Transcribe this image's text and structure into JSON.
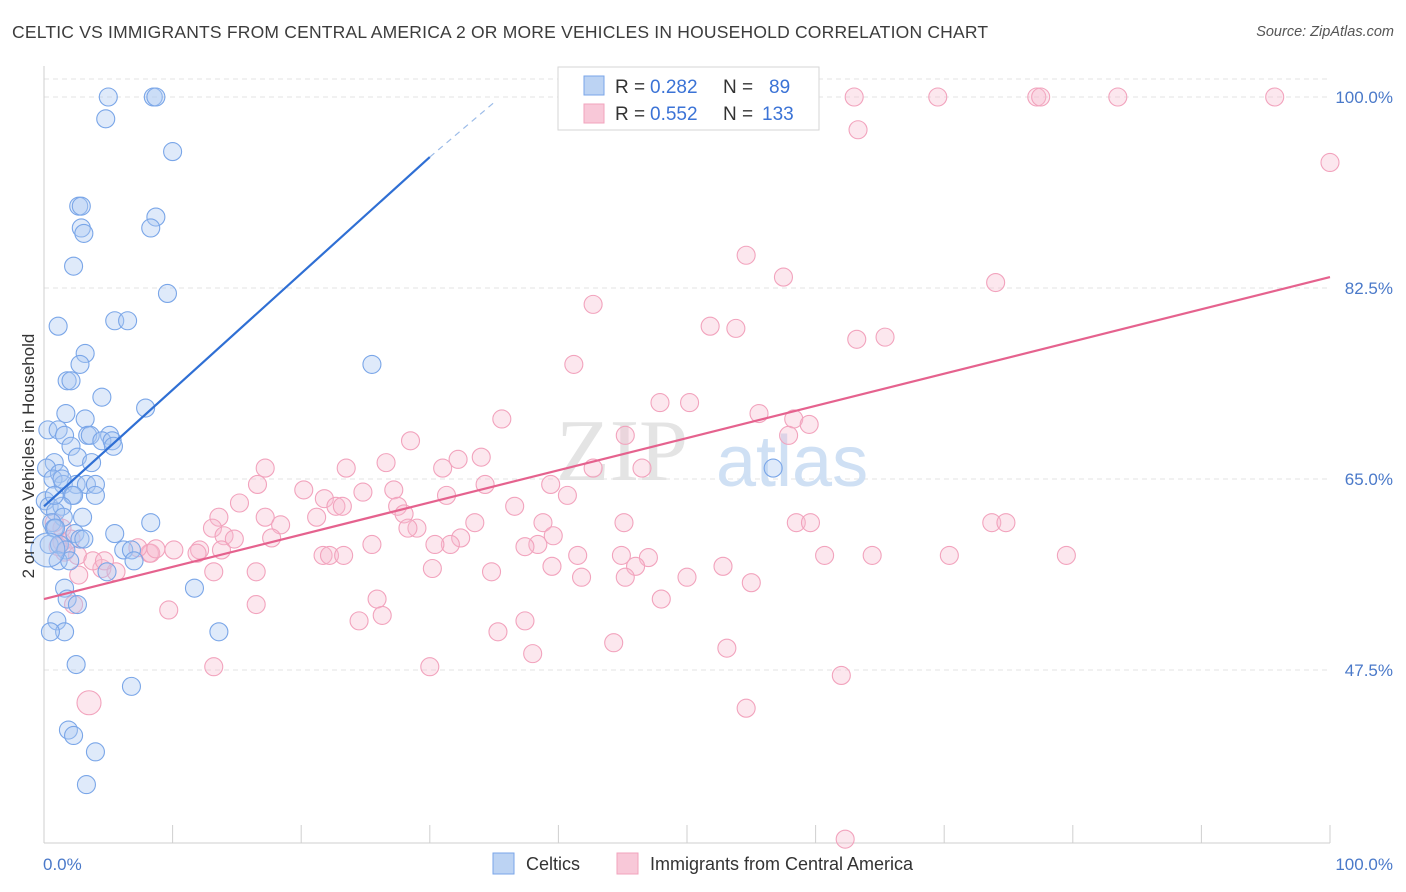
{
  "title": "CELTIC VS IMMIGRANTS FROM CENTRAL AMERICA 2 OR MORE VEHICLES IN HOUSEHOLD CORRELATION CHART",
  "source": "Source: ZipAtlas.com",
  "watermark": {
    "zip": "ZIP",
    "atlas": "atlas"
  },
  "chart_data": {
    "type": "scatter",
    "ylabel": "2 or more Vehicles in Household",
    "xlim": [
      0,
      100
    ],
    "ylim": [
      30,
      100
    ],
    "x_tick_labels": [
      "0.0%",
      "100.0%"
    ],
    "y_ticks": [
      {
        "value": 100.0,
        "label": "100.0%"
      },
      {
        "value": 82.5,
        "label": "82.5%"
      },
      {
        "value": 65.0,
        "label": "65.0%"
      },
      {
        "value": 47.5,
        "label": "47.5%"
      }
    ],
    "grid": true,
    "legend_position": "top-center",
    "stats": [
      {
        "series": "Celtics",
        "r_label": "R =",
        "r": "0.282",
        "n_label": "N =",
        "n": "89"
      },
      {
        "series": "Immigrants from Central America",
        "r_label": "R =",
        "r": "0.552",
        "n_label": "N =",
        "n": "133"
      }
    ],
    "series": [
      {
        "name": "Celtics",
        "color": "#7aa6e8",
        "line_color": "#2f6fd4",
        "trend": {
          "x0": 0,
          "y0": 62.5,
          "x1": 30,
          "y1": 94.5,
          "dash_x1": 35,
          "dash_y1": 99.5
        },
        "points": [
          [
            5,
            100
          ],
          [
            8.5,
            100
          ],
          [
            8.7,
            100
          ],
          [
            4.8,
            98
          ],
          [
            10,
            95
          ],
          [
            2.7,
            90
          ],
          [
            2.9,
            90
          ],
          [
            8.7,
            89
          ],
          [
            2.9,
            88
          ],
          [
            3.1,
            87.5
          ],
          [
            8.3,
            88
          ],
          [
            2.3,
            84.5
          ],
          [
            9.6,
            82
          ],
          [
            5.5,
            79.5
          ],
          [
            6.5,
            79.5
          ],
          [
            1.1,
            79
          ],
          [
            3.2,
            76.5
          ],
          [
            2.8,
            75.5
          ],
          [
            25.5,
            75.5
          ],
          [
            1.8,
            74
          ],
          [
            2.1,
            74
          ],
          [
            4.5,
            72.5
          ],
          [
            1.7,
            71
          ],
          [
            3.2,
            70.5
          ],
          [
            7.9,
            71.5
          ],
          [
            0.3,
            69.5
          ],
          [
            1.1,
            69.5
          ],
          [
            1.6,
            69
          ],
          [
            3.4,
            69
          ],
          [
            3.6,
            69
          ],
          [
            5.1,
            69
          ],
          [
            4.5,
            68.5
          ],
          [
            5.3,
            68.5
          ],
          [
            2.1,
            68
          ],
          [
            5.4,
            68
          ],
          [
            2.6,
            67
          ],
          [
            3.7,
            66.5
          ],
          [
            0.8,
            66.5
          ],
          [
            0.2,
            66
          ],
          [
            1.2,
            65.5
          ],
          [
            0.7,
            65
          ],
          [
            1.5,
            64.5
          ],
          [
            2.5,
            64.5
          ],
          [
            3.3,
            64.5
          ],
          [
            4,
            64.5
          ],
          [
            2.2,
            63.5
          ],
          [
            2.3,
            63.5
          ],
          [
            4,
            63.5
          ],
          [
            0.1,
            63
          ],
          [
            0.4,
            62.5
          ],
          [
            1.4,
            62.5
          ],
          [
            0.9,
            62
          ],
          [
            1.5,
            61.5
          ],
          [
            3,
            61.5
          ],
          [
            0.6,
            61
          ],
          [
            8.3,
            61
          ],
          [
            0.8,
            60.5
          ],
          [
            0.9,
            60.5
          ],
          [
            2.4,
            60
          ],
          [
            5.5,
            60
          ],
          [
            2.8,
            59.5
          ],
          [
            3.1,
            59.5
          ],
          [
            0.4,
            59
          ],
          [
            1.2,
            59
          ],
          [
            1.7,
            58.5
          ],
          [
            6.2,
            58.5
          ],
          [
            6.8,
            58.5
          ],
          [
            1.1,
            57.5
          ],
          [
            2,
            57.5
          ],
          [
            7,
            57.5
          ],
          [
            4.9,
            56.5
          ],
          [
            1.6,
            55
          ],
          [
            11.7,
            55
          ],
          [
            1.8,
            54
          ],
          [
            2.6,
            53.5
          ],
          [
            1,
            52
          ],
          [
            1.6,
            51
          ],
          [
            13.6,
            51
          ],
          [
            0.5,
            51
          ],
          [
            2.5,
            48
          ],
          [
            6.8,
            46
          ],
          [
            1.9,
            42
          ],
          [
            2.3,
            41.5
          ],
          [
            4,
            40
          ],
          [
            3.3,
            37
          ],
          [
            56.7,
            66
          ],
          [
            1.4,
            65
          ],
          [
            0.8,
            63.5
          ],
          [
            0.3,
            58.5
          ]
        ],
        "point_sizes": {
          "default": 9,
          "large": {
            "index": 88,
            "r": 17
          }
        }
      },
      {
        "name": "Immigrants from Central America",
        "color": "#f2a3bd",
        "line_color": "#e5628e",
        "trend": {
          "x0": 0,
          "y0": 54,
          "x1": 100,
          "y1": 83.5
        },
        "points": [
          [
            55.5,
            100
          ],
          [
            63,
            100
          ],
          [
            69.5,
            100
          ],
          [
            77.2,
            100
          ],
          [
            77.5,
            100
          ],
          [
            83.5,
            100
          ],
          [
            95.7,
            100
          ],
          [
            63.3,
            97
          ],
          [
            100,
            94
          ],
          [
            54.6,
            85.5
          ],
          [
            57.5,
            83.5
          ],
          [
            74,
            83
          ],
          [
            42.7,
            81
          ],
          [
            51.8,
            79
          ],
          [
            53.8,
            78.8
          ],
          [
            65.4,
            78
          ],
          [
            63.2,
            77.8
          ],
          [
            41.2,
            75.5
          ],
          [
            47.9,
            72
          ],
          [
            50.2,
            72
          ],
          [
            55.6,
            71
          ],
          [
            35.6,
            70.5
          ],
          [
            58.3,
            70.5
          ],
          [
            59.5,
            70
          ],
          [
            57.9,
            69
          ],
          [
            45.2,
            69
          ],
          [
            28.5,
            68.5
          ],
          [
            34,
            67
          ],
          [
            32.2,
            66.8
          ],
          [
            26.6,
            66.5
          ],
          [
            31,
            66
          ],
          [
            23.5,
            66
          ],
          [
            17.2,
            66
          ],
          [
            42.7,
            66
          ],
          [
            46.5,
            66
          ],
          [
            34.3,
            64.5
          ],
          [
            16.6,
            64.5
          ],
          [
            39.4,
            64.5
          ],
          [
            27.2,
            64
          ],
          [
            20.2,
            64
          ],
          [
            24.8,
            63.8
          ],
          [
            31.3,
            63.5
          ],
          [
            40.7,
            63.5
          ],
          [
            21.8,
            63.2
          ],
          [
            15.2,
            62.8
          ],
          [
            22.7,
            62.5
          ],
          [
            23.2,
            62.5
          ],
          [
            27.5,
            62.5
          ],
          [
            36.6,
            62.5
          ],
          [
            28,
            61.8
          ],
          [
            13.6,
            61.5
          ],
          [
            17.2,
            61.5
          ],
          [
            21.2,
            61.5
          ],
          [
            33.5,
            61
          ],
          [
            38.8,
            61
          ],
          [
            45.1,
            61
          ],
          [
            58.5,
            61
          ],
          [
            59.6,
            61
          ],
          [
            73.7,
            61
          ],
          [
            74.8,
            61
          ],
          [
            18.4,
            60.8
          ],
          [
            13.1,
            60.5
          ],
          [
            29,
            60.5
          ],
          [
            28.3,
            60.5
          ],
          [
            14,
            59.8
          ],
          [
            39.6,
            59.8
          ],
          [
            32.4,
            59.6
          ],
          [
            17.7,
            59.6
          ],
          [
            14.8,
            59.5
          ],
          [
            25.5,
            59
          ],
          [
            31.6,
            59
          ],
          [
            30.4,
            59
          ],
          [
            38.4,
            59
          ],
          [
            12.1,
            58.5
          ],
          [
            13.8,
            58.5
          ],
          [
            37.4,
            58.8
          ],
          [
            10.1,
            58.5
          ],
          [
            8.2,
            58.2
          ],
          [
            8.3,
            58.2
          ],
          [
            11.9,
            58.2
          ],
          [
            21.7,
            58
          ],
          [
            22.2,
            58
          ],
          [
            23.3,
            58
          ],
          [
            41.5,
            58
          ],
          [
            44.9,
            58
          ],
          [
            60.7,
            58
          ],
          [
            70.4,
            58
          ],
          [
            64.4,
            58
          ],
          [
            79.5,
            58
          ],
          [
            47,
            57.8
          ],
          [
            39.5,
            57
          ],
          [
            46,
            57
          ],
          [
            52.8,
            57
          ],
          [
            16.5,
            56.5
          ],
          [
            30.2,
            56.8
          ],
          [
            4.5,
            56.8
          ],
          [
            5.6,
            56.5
          ],
          [
            13.2,
            56.5
          ],
          [
            2.7,
            56.2
          ],
          [
            34.8,
            56.5
          ],
          [
            41.8,
            56
          ],
          [
            45.2,
            56
          ],
          [
            50,
            56
          ],
          [
            55,
            55.5
          ],
          [
            48,
            54
          ],
          [
            2.3,
            53.5
          ],
          [
            16.5,
            53.5
          ],
          [
            25.9,
            54
          ],
          [
            9.7,
            53
          ],
          [
            26.3,
            52.5
          ],
          [
            24.5,
            52
          ],
          [
            37.4,
            52
          ],
          [
            35.3,
            51
          ],
          [
            44.3,
            50
          ],
          [
            53.1,
            49.5
          ],
          [
            38,
            49
          ],
          [
            13.2,
            47.8
          ],
          [
            30,
            47.8
          ],
          [
            62,
            47
          ],
          [
            54.6,
            44
          ],
          [
            3.5,
            44.5
          ],
          [
            62.3,
            32
          ],
          [
            7.3,
            58.7
          ],
          [
            8.7,
            58.6
          ],
          [
            1.4,
            59.2
          ],
          [
            1.6,
            58.3
          ],
          [
            2.6,
            58
          ],
          [
            3.8,
            57.5
          ],
          [
            4.7,
            57.5
          ],
          [
            1.4,
            60.5
          ],
          [
            0.8,
            61
          ],
          [
            2.1,
            59.5
          ],
          [
            1.1,
            58.8
          ]
        ],
        "point_sizes": {
          "default": 9,
          "large": {
            "index": 120,
            "r": 12
          }
        }
      }
    ]
  }
}
